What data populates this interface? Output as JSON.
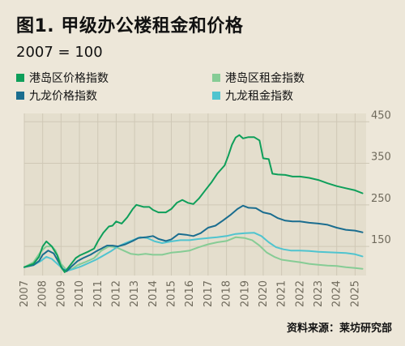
{
  "title": "图1. 甲级办公楼租金和价格",
  "subtitle": "2007 = 100",
  "source": "资料来源：莱坊研究部",
  "chart_data": {
    "type": "line",
    "x_range": [
      2007,
      2025.6
    ],
    "ylim": [
      80,
      470
    ],
    "y_ticks": [
      150,
      250,
      350,
      450
    ],
    "x_ticks": [
      "2007",
      "2008",
      "2009",
      "2010",
      "2011",
      "2012",
      "2013",
      "2014",
      "2015",
      "2016",
      "2017",
      "2018",
      "2019",
      "2020",
      "2021",
      "2022",
      "2023",
      "2024",
      "2025"
    ],
    "grid": true,
    "legend_position": "top",
    "series": [
      {
        "name": "港岛区价格指数",
        "color": "#0e9f5a",
        "points": [
          [
            2007,
            100
          ],
          [
            2007.5,
            108
          ],
          [
            2007.8,
            125
          ],
          [
            2008.0,
            150
          ],
          [
            2008.2,
            162
          ],
          [
            2008.5,
            150
          ],
          [
            2008.8,
            128
          ],
          [
            2009.0,
            100
          ],
          [
            2009.2,
            88
          ],
          [
            2009.5,
            105
          ],
          [
            2009.8,
            122
          ],
          [
            2010.0,
            128
          ],
          [
            2010.5,
            138
          ],
          [
            2010.8,
            145
          ],
          [
            2011.0,
            162
          ],
          [
            2011.3,
            183
          ],
          [
            2011.6,
            198
          ],
          [
            2011.8,
            200
          ],
          [
            2012.0,
            210
          ],
          [
            2012.3,
            205
          ],
          [
            2012.6,
            220
          ],
          [
            2012.9,
            240
          ],
          [
            2013.1,
            250
          ],
          [
            2013.5,
            245
          ],
          [
            2013.8,
            245
          ],
          [
            2014.0,
            238
          ],
          [
            2014.3,
            232
          ],
          [
            2014.7,
            232
          ],
          [
            2015.0,
            240
          ],
          [
            2015.3,
            255
          ],
          [
            2015.6,
            262
          ],
          [
            2015.9,
            255
          ],
          [
            2016.2,
            252
          ],
          [
            2016.5,
            265
          ],
          [
            2016.9,
            288
          ],
          [
            2017.2,
            305
          ],
          [
            2017.5,
            325
          ],
          [
            2017.9,
            345
          ],
          [
            2018.1,
            368
          ],
          [
            2018.3,
            395
          ],
          [
            2018.5,
            412
          ],
          [
            2018.7,
            418
          ],
          [
            2018.9,
            410
          ],
          [
            2019.2,
            413
          ],
          [
            2019.5,
            413
          ],
          [
            2019.8,
            405
          ],
          [
            2020.0,
            362
          ],
          [
            2020.3,
            360
          ],
          [
            2020.5,
            325
          ],
          [
            2020.8,
            323
          ],
          [
            2021.2,
            322
          ],
          [
            2021.6,
            318
          ],
          [
            2022.0,
            318
          ],
          [
            2022.5,
            315
          ],
          [
            2023.0,
            310
          ],
          [
            2023.5,
            302
          ],
          [
            2024.0,
            295
          ],
          [
            2024.5,
            290
          ],
          [
            2025.0,
            285
          ],
          [
            2025.4,
            278
          ]
        ]
      },
      {
        "name": "港岛区租金指数",
        "color": "#86cc95",
        "points": [
          [
            2007,
            100
          ],
          [
            2007.5,
            112
          ],
          [
            2007.9,
            138
          ],
          [
            2008.2,
            150
          ],
          [
            2008.5,
            150
          ],
          [
            2008.7,
            140
          ],
          [
            2009.0,
            108
          ],
          [
            2009.3,
            93
          ],
          [
            2009.6,
            96
          ],
          [
            2009.9,
            105
          ],
          [
            2010.3,
            112
          ],
          [
            2010.8,
            122
          ],
          [
            2011.2,
            140
          ],
          [
            2011.6,
            150
          ],
          [
            2012.0,
            148
          ],
          [
            2012.4,
            140
          ],
          [
            2012.8,
            132
          ],
          [
            2013.2,
            130
          ],
          [
            2013.6,
            132
          ],
          [
            2014.0,
            130
          ],
          [
            2014.5,
            130
          ],
          [
            2015.0,
            135
          ],
          [
            2015.5,
            137
          ],
          [
            2016.0,
            140
          ],
          [
            2016.5,
            148
          ],
          [
            2017.0,
            155
          ],
          [
            2017.5,
            160
          ],
          [
            2018.0,
            163
          ],
          [
            2018.5,
            172
          ],
          [
            2019.0,
            170
          ],
          [
            2019.4,
            165
          ],
          [
            2019.8,
            152
          ],
          [
            2020.2,
            135
          ],
          [
            2020.6,
            125
          ],
          [
            2021.0,
            118
          ],
          [
            2021.5,
            115
          ],
          [
            2022.0,
            112
          ],
          [
            2022.5,
            108
          ],
          [
            2023.0,
            106
          ],
          [
            2023.5,
            104
          ],
          [
            2024.0,
            103
          ],
          [
            2024.5,
            100
          ],
          [
            2025.0,
            98
          ],
          [
            2025.4,
            96
          ]
        ]
      },
      {
        "name": "九龙价格指数",
        "color": "#1a6d8f",
        "points": [
          [
            2007,
            100
          ],
          [
            2007.5,
            105
          ],
          [
            2007.8,
            115
          ],
          [
            2008.0,
            130
          ],
          [
            2008.3,
            140
          ],
          [
            2008.6,
            133
          ],
          [
            2008.9,
            110
          ],
          [
            2009.1,
            95
          ],
          [
            2009.3,
            90
          ],
          [
            2009.6,
            103
          ],
          [
            2009.9,
            115
          ],
          [
            2010.2,
            122
          ],
          [
            2010.6,
            130
          ],
          [
            2010.9,
            138
          ],
          [
            2011.2,
            145
          ],
          [
            2011.5,
            152
          ],
          [
            2011.8,
            152
          ],
          [
            2012.1,
            150
          ],
          [
            2012.5,
            155
          ],
          [
            2012.9,
            163
          ],
          [
            2013.2,
            170
          ],
          [
            2013.6,
            172
          ],
          [
            2014.0,
            175
          ],
          [
            2014.3,
            168
          ],
          [
            2014.7,
            163
          ],
          [
            2015.0,
            167
          ],
          [
            2015.4,
            180
          ],
          [
            2015.8,
            178
          ],
          [
            2016.2,
            175
          ],
          [
            2016.6,
            182
          ],
          [
            2017.0,
            195
          ],
          [
            2017.4,
            200
          ],
          [
            2017.8,
            212
          ],
          [
            2018.2,
            225
          ],
          [
            2018.6,
            240
          ],
          [
            2018.9,
            248
          ],
          [
            2019.2,
            243
          ],
          [
            2019.6,
            242
          ],
          [
            2020.0,
            232
          ],
          [
            2020.4,
            228
          ],
          [
            2020.8,
            218
          ],
          [
            2021.2,
            212
          ],
          [
            2021.6,
            210
          ],
          [
            2022.0,
            210
          ],
          [
            2022.5,
            207
          ],
          [
            2023.0,
            205
          ],
          [
            2023.5,
            202
          ],
          [
            2024.0,
            195
          ],
          [
            2024.5,
            190
          ],
          [
            2025.0,
            188
          ],
          [
            2025.4,
            184
          ]
        ]
      },
      {
        "name": "九龙租金指数",
        "color": "#4fc4cf",
        "points": [
          [
            2007,
            100
          ],
          [
            2007.5,
            105
          ],
          [
            2007.9,
            115
          ],
          [
            2008.2,
            125
          ],
          [
            2008.5,
            120
          ],
          [
            2008.8,
            108
          ],
          [
            2009.1,
            96
          ],
          [
            2009.4,
            92
          ],
          [
            2009.7,
            96
          ],
          [
            2010.1,
            102
          ],
          [
            2010.5,
            110
          ],
          [
            2010.9,
            118
          ],
          [
            2011.3,
            128
          ],
          [
            2011.7,
            138
          ],
          [
            2012.1,
            150
          ],
          [
            2012.5,
            158
          ],
          [
            2012.9,
            165
          ],
          [
            2013.3,
            172
          ],
          [
            2013.7,
            170
          ],
          [
            2014.1,
            162
          ],
          [
            2014.5,
            158
          ],
          [
            2015.0,
            162
          ],
          [
            2015.5,
            165
          ],
          [
            2016.0,
            165
          ],
          [
            2016.5,
            168
          ],
          [
            2017.0,
            170
          ],
          [
            2017.5,
            172
          ],
          [
            2018.0,
            175
          ],
          [
            2018.5,
            180
          ],
          [
            2019.0,
            182
          ],
          [
            2019.5,
            183
          ],
          [
            2019.9,
            175
          ],
          [
            2020.3,
            160
          ],
          [
            2020.7,
            148
          ],
          [
            2021.1,
            143
          ],
          [
            2021.5,
            140
          ],
          [
            2022.0,
            140
          ],
          [
            2022.5,
            139
          ],
          [
            2023.0,
            137
          ],
          [
            2023.5,
            136
          ],
          [
            2024.0,
            135
          ],
          [
            2024.5,
            134
          ],
          [
            2025.0,
            131
          ],
          [
            2025.4,
            126
          ]
        ]
      }
    ]
  }
}
